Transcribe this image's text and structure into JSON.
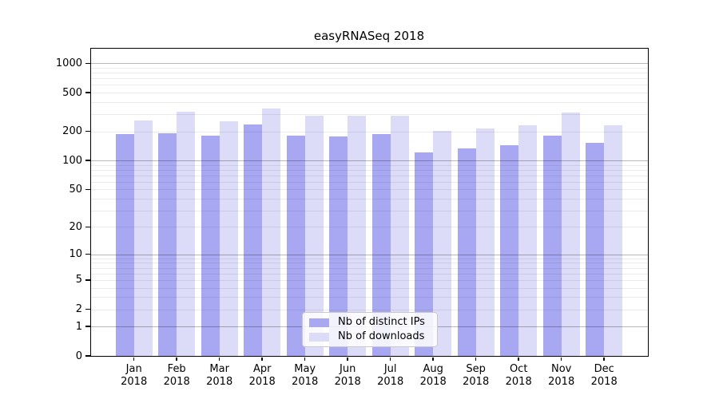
{
  "chart_data": {
    "type": "bar",
    "title": "easyRNASeq 2018",
    "x_year": "2018",
    "categories": [
      "Jan",
      "Feb",
      "Mar",
      "Apr",
      "May",
      "Jun",
      "Jul",
      "Aug",
      "Sep",
      "Oct",
      "Nov",
      "Dec"
    ],
    "series": [
      {
        "key": "distinct-ips",
        "name": "Nb of distinct IPs",
        "color": "#a8a8f2",
        "values": [
          188,
          190,
          181,
          234,
          179,
          176,
          186,
          121,
          132,
          144,
          180,
          151
        ]
      },
      {
        "key": "downloads",
        "name": "Nb of downloads",
        "color": "#dcdcf9",
        "values": [
          258,
          317,
          252,
          345,
          291,
          291,
          287,
          201,
          215,
          232,
          315,
          230
        ]
      }
    ],
    "y_axis": {
      "scale": "log10(value+1)",
      "ticks": [
        0,
        1,
        2,
        5,
        10,
        20,
        50,
        100,
        200,
        500,
        1000
      ],
      "major_gridlines": [
        1,
        10,
        100,
        1000
      ],
      "ylim": [
        0,
        1200
      ]
    },
    "legend": {
      "position": "lower center"
    },
    "grid": "on"
  }
}
